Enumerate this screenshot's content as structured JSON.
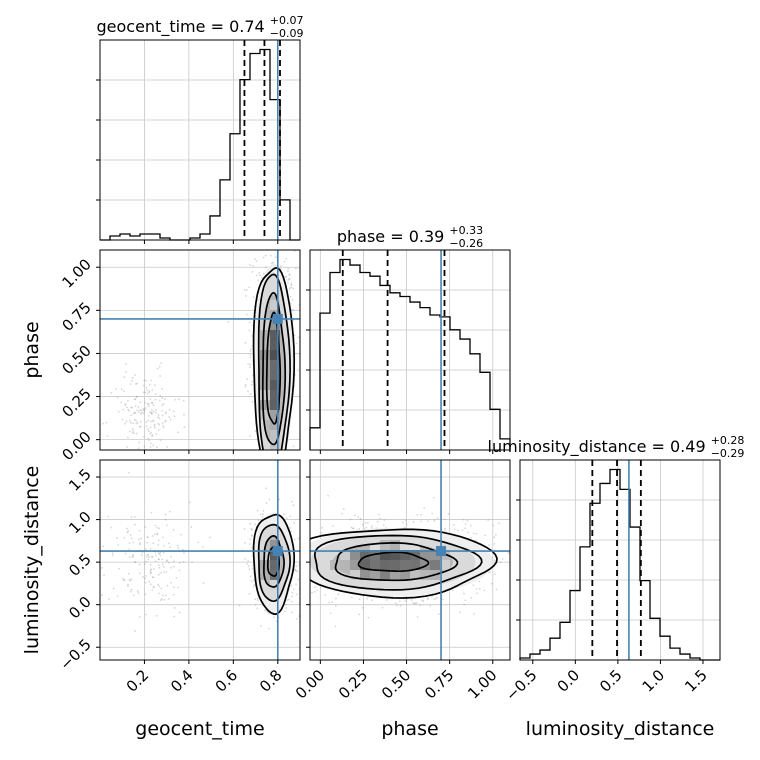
{
  "chart_data": {
    "type": "corner",
    "parameters": [
      "geocent_time",
      "phase",
      "luminosity_distance"
    ],
    "axis_labels": {
      "geocent_time": "geocent_time",
      "phase": "phase",
      "luminosity_distance": "luminosity_distance"
    },
    "truths": {
      "geocent_time": 0.8,
      "phase": 0.7,
      "luminosity_distance": 0.63
    },
    "truth_color": "#4682b4",
    "ranges": {
      "geocent_time": [
        0.0,
        0.9
      ],
      "phase": [
        -0.06,
        1.1
      ],
      "luminosity_distance": [
        -0.65,
        1.7
      ]
    },
    "ticks": {
      "geocent_time": {
        "values": [
          0.2,
          0.4,
          0.6,
          0.8
        ],
        "labels": [
          "0.2",
          "0.4",
          "0.6",
          "0.8"
        ]
      },
      "phase": {
        "values": [
          0.0,
          0.25,
          0.5,
          0.75,
          1.0
        ],
        "labels": [
          "0.00",
          "0.25",
          "0.50",
          "0.75",
          "1.00"
        ]
      },
      "luminosity_distance": {
        "values": [
          -0.5,
          0.0,
          0.5,
          1.0,
          1.5
        ],
        "labels": [
          "−0.5",
          "0.0",
          "0.5",
          "1.0",
          "1.5"
        ]
      }
    },
    "titles": [
      {
        "param": "geocent_time",
        "prefix": "geocent_time = ",
        "median": "0.74",
        "plus": "+0.07",
        "minus": "−0.09"
      },
      {
        "param": "phase",
        "prefix": "phase = ",
        "median": "0.39",
        "plus": "+0.33",
        "minus": "−0.26"
      },
      {
        "param": "luminosity_distance",
        "prefix": "luminosity_distance = ",
        "median": "0.49",
        "plus": "+0.28",
        "minus": "−0.29"
      }
    ],
    "quantiles": {
      "geocent_time": [
        0.65,
        0.74,
        0.81
      ],
      "phase": [
        0.13,
        0.39,
        0.72
      ],
      "luminosity_distance": [
        0.2,
        0.49,
        0.77
      ]
    },
    "histograms": {
      "geocent_time": {
        "edges": [
          0.0,
          0.045,
          0.09,
          0.135,
          0.18,
          0.225,
          0.27,
          0.315,
          0.36,
          0.405,
          0.45,
          0.495,
          0.54,
          0.585,
          0.63,
          0.675,
          0.72,
          0.765,
          0.81,
          0.855,
          0.9
        ],
        "counts": [
          0,
          2,
          3,
          2,
          3,
          3,
          1,
          0,
          0,
          1,
          3,
          12,
          30,
          53,
          80,
          93,
          95,
          70,
          20,
          0
        ]
      },
      "phase": {
        "edges": [
          -0.06,
          -0.002,
          0.056,
          0.114,
          0.172,
          0.23,
          0.288,
          0.346,
          0.404,
          0.462,
          0.52,
          0.578,
          0.636,
          0.694,
          0.752,
          0.81,
          0.868,
          0.926,
          0.984,
          1.042,
          1.1
        ],
        "counts": [
          12,
          74,
          96,
          103,
          100,
          96,
          94,
          89,
          85,
          83,
          80,
          77,
          73,
          72,
          65,
          60,
          52,
          42,
          22,
          6
        ]
      },
      "luminosity_distance": {
        "edges": [
          -0.65,
          -0.5325,
          -0.415,
          -0.2975,
          -0.18,
          -0.0625,
          0.055,
          0.1725,
          0.29,
          0.4075,
          0.525,
          0.6425,
          0.76,
          0.8775,
          0.995,
          1.1125,
          1.23,
          1.3475,
          1.465,
          1.5825,
          1.7
        ],
        "counts": [
          1,
          3,
          5,
          11,
          19,
          35,
          57,
          79,
          89,
          96,
          86,
          67,
          40,
          21,
          12,
          6,
          3,
          1,
          0,
          0
        ]
      }
    },
    "contours": {
      "geocent_time|phase": {
        "center": [
          0.78,
          0.4
        ],
        "radii": [
          [
            0.03,
            0.32
          ],
          [
            0.05,
            0.44
          ],
          [
            0.07,
            0.57
          ],
          [
            0.09,
            0.62
          ]
        ]
      },
      "geocent_time|luminosity_distance": {
        "center": [
          0.78,
          0.5
        ],
        "radii": [
          [
            0.025,
            0.17
          ],
          [
            0.045,
            0.3
          ],
          [
            0.07,
            0.45
          ],
          [
            0.09,
            0.58
          ]
        ]
      },
      "phase|luminosity_distance": {
        "center": [
          0.42,
          0.5
        ],
        "radii": [
          [
            0.2,
            0.11
          ],
          [
            0.35,
            0.22
          ],
          [
            0.48,
            0.32
          ],
          [
            0.58,
            0.4
          ]
        ]
      }
    },
    "scatter_clusters": {
      "geocent_time|phase": [
        {
          "center": [
            0.78,
            0.55
          ],
          "sd": [
            0.05,
            0.28
          ],
          "n": 700
        },
        {
          "center": [
            0.2,
            0.15
          ],
          "sd": [
            0.08,
            0.12
          ],
          "n": 180
        }
      ],
      "geocent_time|luminosity_distance": [
        {
          "center": [
            0.78,
            0.5
          ],
          "sd": [
            0.05,
            0.28
          ],
          "n": 700
        },
        {
          "center": [
            0.22,
            0.5
          ],
          "sd": [
            0.1,
            0.28
          ],
          "n": 180
        }
      ],
      "phase|luminosity_distance": [
        {
          "center": [
            0.45,
            0.5
          ],
          "sd": [
            0.28,
            0.24
          ],
          "n": 900
        }
      ]
    },
    "grid": true
  }
}
